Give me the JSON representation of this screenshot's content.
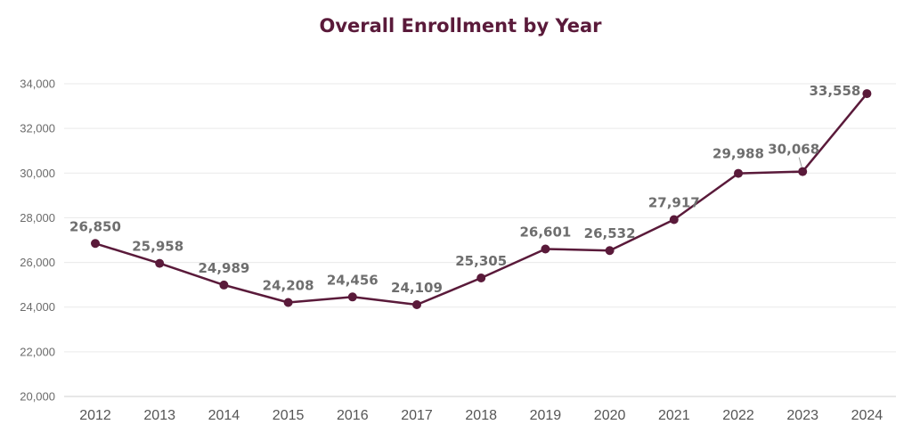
{
  "chart_data": {
    "type": "line",
    "title": "Overall Enrollment by Year",
    "xlabel": "",
    "ylabel": "",
    "categories": [
      "2012",
      "2013",
      "2014",
      "2015",
      "2016",
      "2017",
      "2018",
      "2019",
      "2020",
      "2021",
      "2022",
      "2023",
      "2024"
    ],
    "series": [
      {
        "values": [
          26850,
          25958,
          24989,
          24208,
          24456,
          24109,
          25305,
          26601,
          26532,
          27917,
          29988,
          30068,
          33558
        ]
      }
    ],
    "data_labels": [
      "26,850",
      "25,958",
      "24,989",
      "24,208",
      "24,456",
      "24,109",
      "25,305",
      "26,601",
      "26,532",
      "27,917",
      "29,988",
      "30,068",
      "33,558"
    ],
    "ylim": [
      20000,
      34000
    ],
    "yticks": [
      20000,
      22000,
      24000,
      26000,
      28000,
      30000,
      32000,
      34000
    ],
    "ytick_labels": [
      "20,000",
      "22,000",
      "24,000",
      "26,000",
      "28,000",
      "30,000",
      "32,000",
      "34,000"
    ],
    "grid": true,
    "legend": "none",
    "colors": {
      "line": "#5a1a3a",
      "title": "#5a1a3a"
    }
  }
}
